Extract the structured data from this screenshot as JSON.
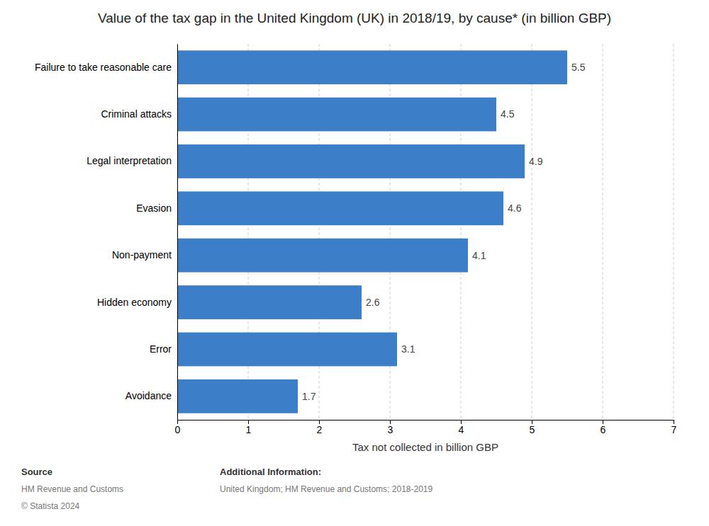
{
  "chart_data": {
    "type": "bar",
    "orientation": "horizontal",
    "title": "Value of the tax gap in the United Kingdom (UK) in 2018/19, by cause* (in billion GBP)",
    "categories": [
      "Failure to take reasonable care",
      "Criminal attacks",
      "Legal interpretation",
      "Evasion",
      "Non-payment",
      "Hidden economy",
      "Error",
      "Avoidance"
    ],
    "values": [
      5.5,
      4.5,
      4.9,
      4.6,
      4.1,
      2.6,
      3.1,
      1.7
    ],
    "color": "#3d7ec8",
    "x_label": "Tax not collected in billion GBP",
    "xlim": [
      0,
      7
    ],
    "xticks": [
      0,
      1,
      2,
      3,
      4,
      5,
      6,
      7
    ],
    "grid": true,
    "data_labels": true,
    "annotations": [
      [
        "Source",
        "HM Revenue and Customs",
        "© Statista 2024"
      ],
      [
        "Additional Information:",
        "United Kingdom; HM Revenue and Customs; 2018-2019"
      ]
    ]
  }
}
